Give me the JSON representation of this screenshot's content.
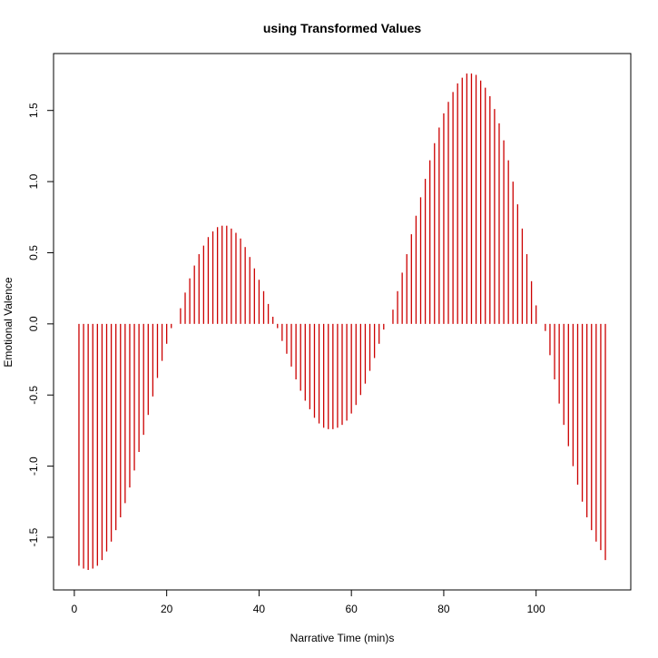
{
  "chart_data": {
    "type": "bar",
    "title": "using Transformed Values",
    "xlabel": "Narrative Time (min)s",
    "ylabel": "Emotional Valence",
    "xlim": [
      -4.5,
      120.5
    ],
    "ylim": [
      -1.87,
      1.9
    ],
    "xticks": [
      0,
      20,
      40,
      60,
      80,
      100
    ],
    "yticks": [
      -1.5,
      -1.0,
      -0.5,
      0.0,
      0.5,
      1.0,
      1.5
    ],
    "ytick_labels": [
      "-1.5",
      "-1.0",
      "-0.5",
      "0.0",
      "0.5",
      "1.0",
      "1.5"
    ],
    "bar_color": "#cc0000",
    "x": [
      1,
      2,
      3,
      4,
      5,
      6,
      7,
      8,
      9,
      10,
      11,
      12,
      13,
      14,
      15,
      16,
      17,
      18,
      19,
      20,
      21,
      22,
      23,
      24,
      25,
      26,
      27,
      28,
      29,
      30,
      31,
      32,
      33,
      34,
      35,
      36,
      37,
      38,
      39,
      40,
      41,
      42,
      43,
      44,
      45,
      46,
      47,
      48,
      49,
      50,
      51,
      52,
      53,
      54,
      55,
      56,
      57,
      58,
      59,
      60,
      61,
      62,
      63,
      64,
      65,
      66,
      67,
      68,
      69,
      70,
      71,
      72,
      73,
      74,
      75,
      76,
      77,
      78,
      79,
      80,
      81,
      82,
      83,
      84,
      85,
      86,
      87,
      88,
      89,
      90,
      91,
      92,
      93,
      94,
      95,
      96,
      97,
      98,
      99,
      100,
      101,
      102,
      103,
      104,
      105,
      106,
      107,
      108,
      109,
      110,
      111,
      112,
      113,
      114,
      115
    ],
    "values": [
      -1.7,
      -1.72,
      -1.73,
      -1.72,
      -1.7,
      -1.66,
      -1.6,
      -1.53,
      -1.45,
      -1.36,
      -1.26,
      -1.15,
      -1.03,
      -0.9,
      -0.78,
      -0.64,
      -0.51,
      -0.38,
      -0.26,
      -0.14,
      -0.03,
      0.0,
      0.11,
      0.22,
      0.32,
      0.41,
      0.49,
      0.55,
      0.61,
      0.65,
      0.68,
      0.69,
      0.69,
      0.67,
      0.64,
      0.6,
      0.54,
      0.47,
      0.39,
      0.31,
      0.23,
      0.14,
      0.05,
      -0.03,
      -0.12,
      -0.21,
      -0.3,
      -0.39,
      -0.47,
      -0.54,
      -0.6,
      -0.66,
      -0.7,
      -0.73,
      -0.74,
      -0.74,
      -0.73,
      -0.71,
      -0.68,
      -0.63,
      -0.57,
      -0.5,
      -0.42,
      -0.33,
      -0.24,
      -0.14,
      -0.04,
      0.0,
      0.1,
      0.23,
      0.36,
      0.49,
      0.63,
      0.76,
      0.89,
      1.02,
      1.15,
      1.27,
      1.38,
      1.48,
      1.56,
      1.63,
      1.69,
      1.73,
      1.76,
      1.76,
      1.75,
      1.71,
      1.66,
      1.6,
      1.51,
      1.41,
      1.29,
      1.15,
      1.0,
      0.84,
      0.67,
      0.49,
      0.3,
      0.13,
      0.0,
      -0.05,
      -0.22,
      -0.39,
      -0.56,
      -0.71,
      -0.86,
      -1.0,
      -1.13,
      -1.25,
      -1.36,
      -1.45,
      -1.53,
      -1.59,
      -1.66
    ]
  }
}
